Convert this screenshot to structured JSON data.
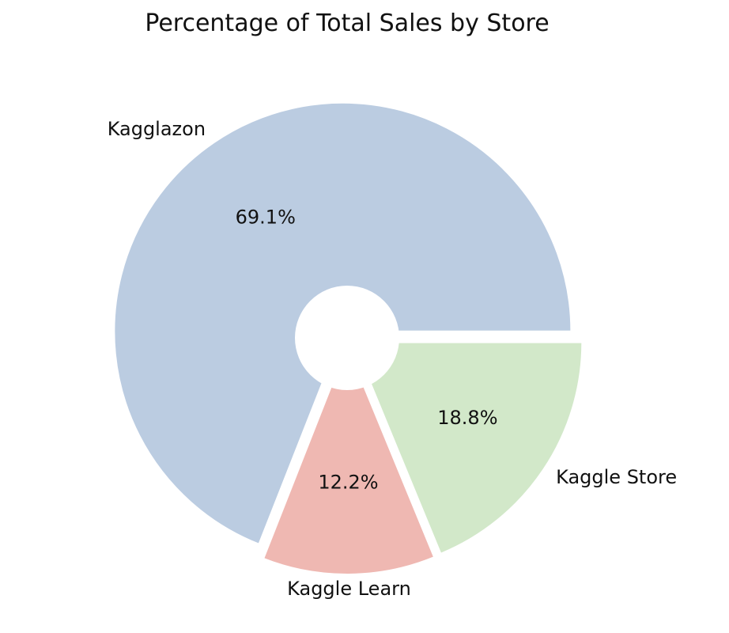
{
  "chart_data": {
    "type": "pie",
    "title": "Percentage of Total Sales by Store",
    "hole": "donut",
    "slices": [
      {
        "label": "Kagglazon",
        "value": 69.1,
        "pct_label": "69.1%",
        "color": "#bbcce1"
      },
      {
        "label": "Kaggle Learn",
        "value": 12.2,
        "pct_label": "12.2%",
        "color": "#efb8b2"
      },
      {
        "label": "Kaggle Store",
        "value": 18.8,
        "pct_label": "18.8%",
        "color": "#d2e8c9"
      }
    ]
  }
}
